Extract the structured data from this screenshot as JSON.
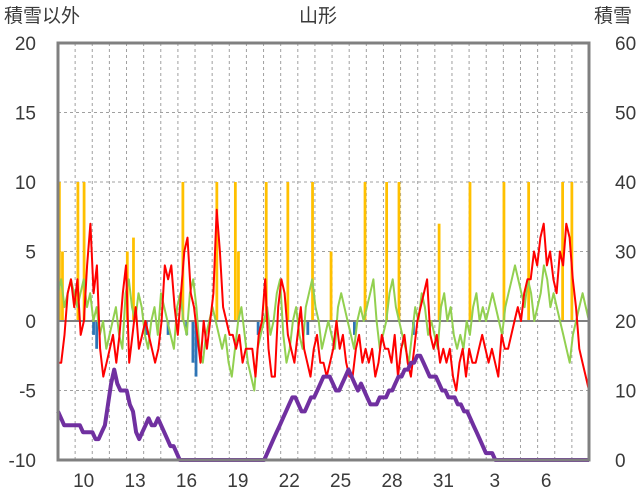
{
  "chart_data": {
    "type": "line",
    "title": "山形",
    "y_left_label": "積雪以外",
    "y_right_label": "積雪",
    "y_left_ticks": [
      "20",
      "15",
      "10",
      "5",
      "0",
      "-5",
      "-10"
    ],
    "y_right_ticks": [
      "60",
      "50",
      "40",
      "30",
      "20",
      "10",
      "0"
    ],
    "x_ticks": [
      "10",
      "13",
      "16",
      "19",
      "22",
      "25",
      "28",
      "31",
      "3",
      "6"
    ],
    "y_left_range": [
      -10,
      20
    ],
    "y_right_range": [
      0,
      60
    ],
    "grid": true,
    "colors": {
      "red_line": "#ff0000",
      "green_line": "#92d050",
      "purple_line": "#7030a0",
      "yellow_bars": "#ffc000",
      "blue_bars": "#2e75b6",
      "frame": "#808080",
      "grid": "#a0a0a0",
      "zero_line": "#808080"
    },
    "series": [
      {
        "key": "red_line",
        "values": [
          -3,
          -3,
          -1,
          2,
          3,
          1,
          3,
          -1,
          0,
          4,
          7,
          2,
          4,
          -2,
          -4,
          -3,
          -2,
          -1,
          -3,
          -1,
          2,
          4,
          -3,
          -1,
          1,
          -2,
          -1,
          0,
          -1,
          -2,
          -3,
          -2,
          0,
          4,
          3,
          4,
          1,
          -1,
          2,
          5,
          6,
          2,
          1,
          -1,
          -3,
          0,
          -2,
          0,
          2,
          8,
          5,
          1,
          0,
          -1,
          -1,
          -2,
          -1,
          -3,
          -2,
          -2,
          -2,
          -4,
          -1,
          0,
          3,
          -2,
          -4,
          -4,
          1,
          3,
          2,
          -1,
          -2,
          -3,
          -1,
          1,
          -2,
          -3,
          -4,
          -2,
          -1,
          -3,
          -3,
          -4,
          -3,
          -2,
          0,
          -2,
          -1,
          -3,
          -4,
          -4,
          -2,
          -1,
          -3,
          -2,
          -3,
          -2,
          -4,
          -3,
          -1,
          -2,
          -2,
          -3,
          -1,
          -4,
          -2,
          -1,
          -3,
          -4,
          -2,
          0,
          1,
          2,
          3,
          -1,
          -2,
          -1,
          -3,
          -2,
          -3,
          -2,
          -4,
          -5,
          -3,
          -2,
          -4,
          -2,
          -3,
          -3,
          -2,
          -1,
          -2,
          -3,
          -2,
          -3,
          -4,
          -1,
          -2,
          -2,
          -1,
          0,
          1,
          0,
          2,
          3,
          3,
          5,
          4,
          6,
          7,
          4,
          5,
          3,
          2,
          5,
          4,
          7,
          6,
          3,
          1,
          -2,
          -3,
          -4,
          -5
        ]
      },
      {
        "key": "green_line",
        "values": [
          2,
          3,
          1,
          2,
          3,
          2,
          1,
          2,
          3,
          1,
          2,
          0,
          1,
          -1,
          0,
          -2,
          -1,
          0,
          1,
          -1,
          -2,
          2,
          3,
          1,
          0,
          2,
          1,
          -1,
          -2,
          0,
          1,
          -1,
          2,
          1,
          0,
          -1,
          -2,
          1,
          2,
          0,
          -1,
          2,
          3,
          1,
          -2,
          -3,
          -1,
          0,
          1,
          0,
          -1,
          -2,
          -1,
          -3,
          -4,
          -2,
          0,
          1,
          -1,
          -3,
          -4,
          -5,
          -2,
          -1,
          0,
          1,
          -1,
          0,
          2,
          3,
          -1,
          -3,
          -2,
          0,
          1,
          -1,
          -2,
          1,
          2,
          3,
          1,
          0,
          -2,
          -1,
          0,
          -1,
          -2,
          1,
          2,
          1,
          0,
          -1,
          -2,
          0,
          1,
          0,
          1,
          2,
          3,
          0,
          -2,
          -1,
          0,
          2,
          3,
          1,
          0,
          -1,
          -2,
          -3,
          -1,
          1,
          0,
          2,
          1,
          -1,
          0,
          -1,
          -2,
          1,
          2,
          0,
          1,
          -1,
          -2,
          -1,
          -2,
          0,
          -1,
          1,
          2,
          0,
          1,
          0,
          1,
          2,
          1,
          0,
          -1,
          1,
          2,
          3,
          4,
          3,
          2,
          1,
          3,
          2,
          0,
          1,
          2,
          4,
          3,
          1,
          2,
          1,
          0,
          -1,
          -2,
          -3,
          -1,
          0,
          1,
          2,
          1,
          0
        ]
      },
      {
        "key": "purple_line",
        "values": [
          7,
          6,
          5,
          5,
          5,
          5,
          5,
          5,
          4,
          4,
          4,
          4,
          3,
          3,
          4,
          5,
          8,
          11,
          13,
          11,
          10,
          10,
          10,
          8,
          7,
          4,
          3,
          4,
          5,
          6,
          5,
          5,
          6,
          5,
          4,
          3,
          2,
          2,
          1,
          0,
          0,
          0,
          0,
          0,
          0,
          0,
          0,
          0,
          0,
          0,
          0,
          0,
          0,
          0,
          0,
          0,
          0,
          0,
          0,
          0,
          0,
          0,
          0,
          0,
          0,
          0,
          0,
          1,
          2,
          3,
          4,
          5,
          6,
          7,
          8,
          9,
          9,
          8,
          7,
          7,
          8,
          9,
          9,
          10,
          11,
          12,
          12,
          12,
          11,
          10,
          10,
          11,
          12,
          13,
          12,
          11,
          10,
          11,
          10,
          9,
          8,
          8,
          8,
          9,
          9,
          9,
          10,
          10,
          11,
          12,
          12,
          13,
          13,
          14,
          14,
          15,
          15,
          14,
          13,
          12,
          12,
          12,
          11,
          10,
          10,
          9,
          9,
          9,
          8,
          8,
          7,
          7,
          6,
          5,
          4,
          3,
          2,
          1,
          1,
          1,
          0,
          0,
          0,
          0,
          0,
          0,
          0,
          0,
          0,
          0,
          0,
          0,
          0,
          0,
          0,
          0,
          0,
          0,
          0,
          0,
          0,
          0,
          0,
          0,
          0,
          0,
          0,
          0,
          0,
          0,
          0
        ]
      },
      {
        "key": "yellow_bars",
        "values": [
          10,
          5,
          0,
          0,
          0,
          0,
          10,
          0,
          10,
          0,
          0,
          0,
          0,
          0,
          0,
          0,
          0,
          0,
          0,
          0,
          0,
          0,
          5,
          0,
          6,
          0,
          0,
          0,
          0,
          0,
          0,
          0,
          0,
          0,
          0,
          0,
          0,
          0,
          0,
          0,
          10,
          0,
          0,
          0,
          0,
          0,
          0,
          0,
          0,
          0,
          0,
          10,
          0,
          0,
          0,
          0,
          0,
          10,
          5,
          0,
          0,
          0,
          0,
          0,
          0,
          0,
          0,
          10,
          0,
          0,
          0,
          0,
          0,
          0,
          10,
          0,
          0,
          0,
          0,
          0,
          0,
          0,
          10,
          0,
          0,
          0,
          0,
          0,
          5,
          0,
          0,
          0,
          0,
          0,
          0,
          0,
          0,
          0,
          0,
          10,
          0,
          0,
          0,
          0,
          0,
          0,
          10,
          0,
          0,
          0,
          10,
          0,
          0,
          0,
          0,
          0,
          0,
          0,
          0,
          0,
          0,
          0,
          0,
          7,
          0,
          0,
          0,
          0,
          0,
          0,
          0,
          0,
          0,
          10,
          0,
          0,
          0,
          0,
          0,
          0,
          0,
          0,
          0,
          0,
          10,
          0,
          0,
          0,
          0,
          0,
          0,
          0,
          10,
          0,
          0,
          0,
          0,
          0,
          0,
          0,
          0,
          0,
          0,
          10,
          0,
          0,
          10,
          0,
          0,
          0,
          0,
          0
        ]
      },
      {
        "key": "blue_bars",
        "values": [
          0,
          0,
          0,
          0,
          0,
          0,
          0,
          0,
          0,
          0,
          0,
          -1,
          -2,
          0,
          0,
          0,
          0,
          0,
          0,
          0,
          0,
          0,
          0,
          0,
          0,
          0,
          0,
          0,
          -1,
          0,
          0,
          0,
          0,
          0,
          0,
          -1,
          0,
          0,
          0,
          0,
          0,
          -1,
          0,
          -3,
          -4,
          0,
          0,
          0,
          0,
          0,
          0,
          0,
          0,
          0,
          0,
          0,
          0,
          0,
          0,
          0,
          0,
          0,
          0,
          0,
          -1,
          0,
          0,
          0,
          0,
          0,
          0,
          0,
          0,
          0,
          0,
          0,
          0,
          0,
          0,
          0,
          -1,
          0,
          0,
          0,
          0,
          0,
          0,
          0,
          0,
          0,
          0,
          0,
          0,
          0,
          0,
          -1,
          0,
          0,
          0,
          0,
          0,
          0,
          0,
          0,
          0,
          0,
          0,
          0,
          0,
          0,
          0,
          0,
          0,
          0,
          -1,
          0,
          0,
          0,
          0,
          0,
          0,
          0,
          0,
          0,
          0,
          0,
          0,
          0,
          0,
          0,
          0,
          0,
          0,
          0,
          0,
          0,
          0,
          0,
          0,
          0,
          0,
          0,
          0,
          0,
          0,
          0,
          0,
          0,
          0,
          0,
          0,
          0,
          0,
          0,
          0,
          0,
          0,
          0,
          0,
          0,
          0,
          0,
          0,
          0,
          0,
          0,
          0,
          0,
          0,
          0,
          0
        ]
      }
    ]
  }
}
